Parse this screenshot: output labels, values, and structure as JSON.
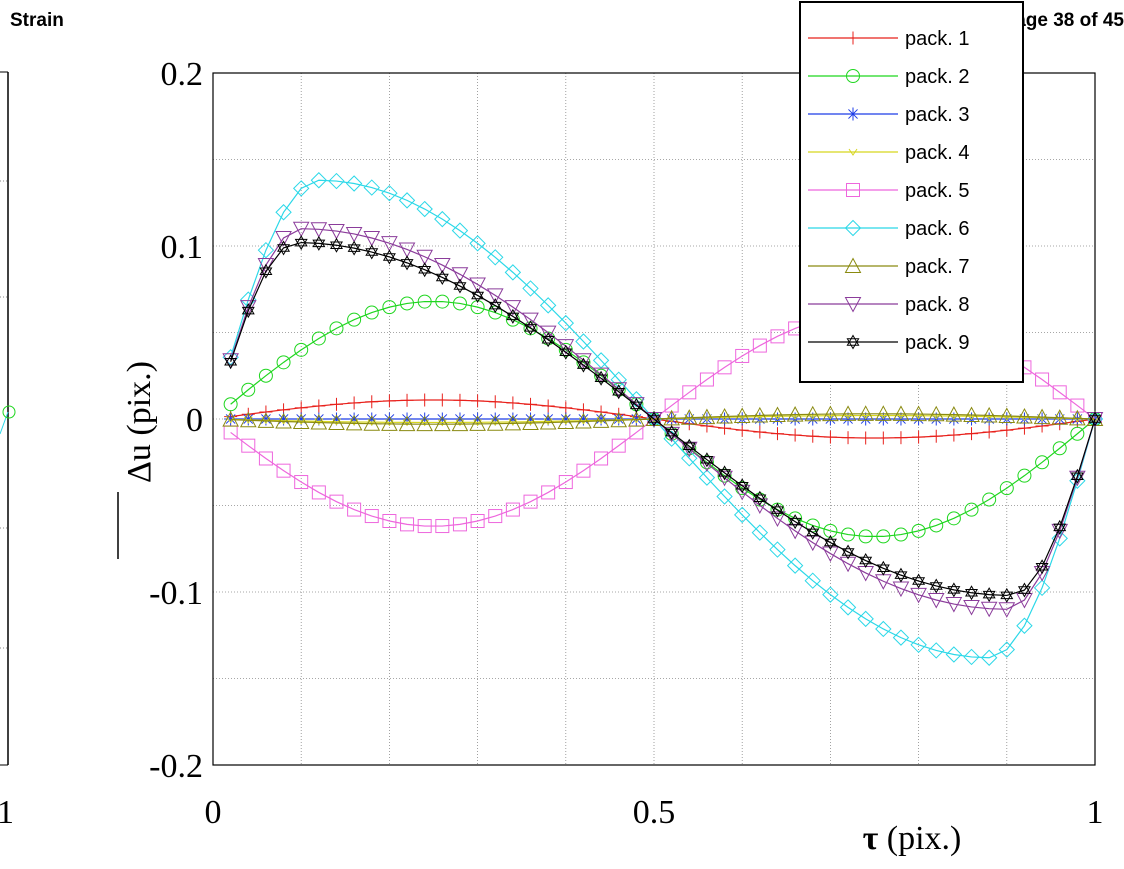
{
  "header": {
    "left": "Strain",
    "right": "Page 38 of 45"
  },
  "chart_data": {
    "type": "line",
    "title": "",
    "xlabel_symbol": "τ",
    "xlabel_unit": " (pix.)",
    "ylabel_symbol": "Δu",
    "ylabel_unit": " (pix.)",
    "xlim": [
      0,
      1
    ],
    "ylim": [
      -0.2,
      0.2
    ],
    "xticks": [
      {
        "v": 0,
        "label": "0"
      },
      {
        "v": 0.5,
        "label": "0.5"
      },
      {
        "v": 1,
        "label": "1"
      }
    ],
    "yticks": [
      {
        "v": 0.2,
        "label": "0.2"
      },
      {
        "v": 0.1,
        "label": "0.1"
      },
      {
        "v": 0,
        "label": "0"
      },
      {
        "v": -0.1,
        "label": "-0.1"
      },
      {
        "v": -0.2,
        "label": "-0.2"
      }
    ],
    "grid": true,
    "legend": "top-right",
    "left_panel_tick_label": "1",
    "n_points": 50,
    "x_start": 0.02,
    "x_end": 1.0,
    "series": [
      {
        "name": "pack. 1",
        "color": "#e8201b",
        "marker": "plus",
        "amplitude": 0.011,
        "shape": "sine"
      },
      {
        "name": "pack. 2",
        "color": "#1fd61f",
        "marker": "circle",
        "amplitude": 0.068,
        "shape": "sine"
      },
      {
        "name": "pack. 3",
        "color": "#1c3ce8",
        "marker": "asterisk",
        "amplitude": 0.0,
        "shape": "flat"
      },
      {
        "name": "pack. 4",
        "color": "#d6d61f",
        "marker": "tri-down-small",
        "amplitude": -0.002,
        "shape": "sine"
      },
      {
        "name": "pack. 5",
        "color": "#ee66dd",
        "marker": "square",
        "amplitude": -0.062,
        "shape": "sine"
      },
      {
        "name": "pack. 6",
        "color": "#2bd8e8",
        "marker": "diamond",
        "amplitude": 0.138,
        "shape": "skew",
        "x_peak": 0.12
      },
      {
        "name": "pack. 7",
        "color": "#8a8a10",
        "marker": "triangle-up",
        "amplitude": -0.003,
        "shape": "sine"
      },
      {
        "name": "pack. 8",
        "color": "#8b3c9b",
        "marker": "triangle-down",
        "amplitude": 0.11,
        "shape": "skew",
        "x_peak": 0.1
      },
      {
        "name": "pack. 9",
        "color": "#000000",
        "marker": "star",
        "amplitude": 0.102,
        "shape": "skew",
        "x_peak": 0.095
      }
    ]
  }
}
